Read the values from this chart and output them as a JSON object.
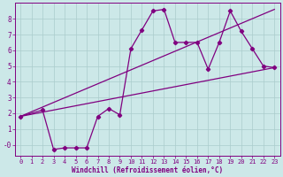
{
  "xlabel": "Windchill (Refroidissement éolien,°C)",
  "background_color": "#cce8e8",
  "grid_color": "#aacccc",
  "line_color": "#800080",
  "spine_color": "#800080",
  "xlim": [
    -0.5,
    23.5
  ],
  "ylim": [
    -0.7,
    9.0
  ],
  "yticks": [
    0,
    1,
    2,
    3,
    4,
    5,
    6,
    7,
    8
  ],
  "ytick_labels": [
    "-0",
    "1",
    "2",
    "3",
    "4",
    "5",
    "6",
    "7",
    "8"
  ],
  "xticks": [
    0,
    1,
    2,
    3,
    4,
    5,
    6,
    7,
    8,
    9,
    10,
    11,
    12,
    13,
    14,
    15,
    16,
    17,
    18,
    19,
    20,
    21,
    22,
    23
  ],
  "series_main": {
    "x": [
      0,
      2,
      3,
      4,
      5,
      6,
      7,
      8,
      9,
      10,
      11,
      12,
      13,
      14,
      15,
      16,
      17,
      18,
      19,
      20,
      21,
      22,
      23
    ],
    "y": [
      1.8,
      2.2,
      -0.3,
      -0.2,
      -0.2,
      -0.2,
      1.8,
      2.3,
      1.9,
      6.1,
      7.3,
      8.5,
      8.6,
      6.5,
      6.5,
      6.5,
      4.8,
      6.5,
      8.5,
      7.2,
      6.1,
      5.0,
      4.9
    ]
  },
  "series_line1": {
    "x": [
      0,
      23
    ],
    "y": [
      1.8,
      8.6
    ]
  },
  "series_line2": {
    "x": [
      0,
      23
    ],
    "y": [
      1.8,
      4.9
    ]
  },
  "tick_fontsize": 5,
  "xlabel_fontsize": 5.5,
  "linewidth": 0.9,
  "markersize": 2.2
}
